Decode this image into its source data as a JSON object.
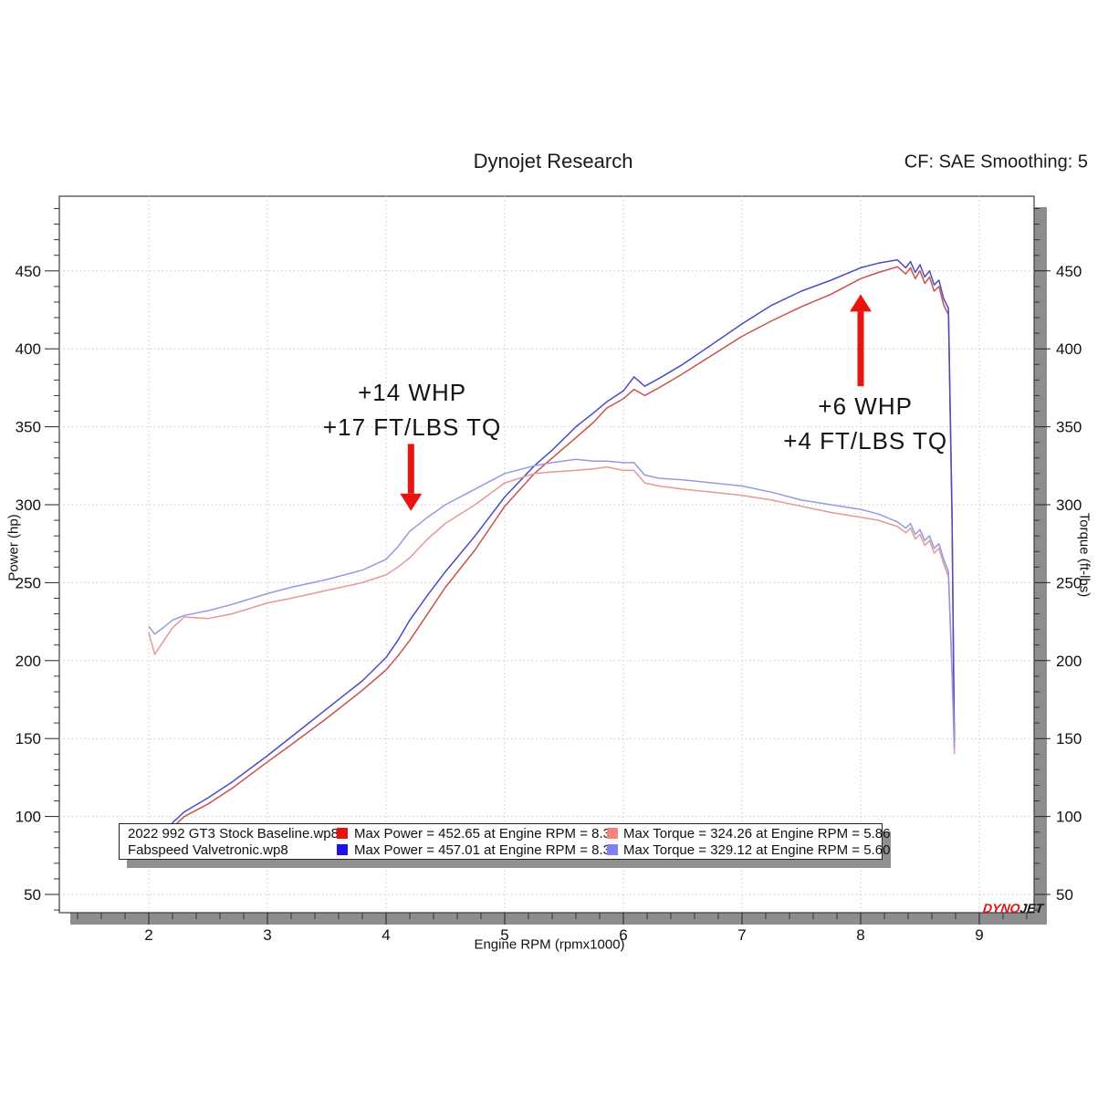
{
  "header": {
    "title": "Dynojet Research",
    "smoothing": "CF: SAE Smoothing: 5"
  },
  "chart_data": {
    "type": "line",
    "title": "Dynojet Research",
    "xlabel": "Engine RPM (rpmx1000)",
    "ylabel_left": "Power (hp)",
    "ylabel_right": "Torque (ft-lbs)",
    "x_ticks": [
      2,
      3,
      4,
      5,
      6,
      7,
      8,
      9
    ],
    "y_ticks": [
      50,
      100,
      150,
      200,
      250,
      300,
      350,
      400,
      450
    ],
    "xlim": [
      1.25,
      9.47
    ],
    "ylim": [
      39,
      498
    ],
    "grid": "dotted",
    "legend_position": "bottom",
    "x": [
      2.0,
      2.05,
      2.12,
      2.2,
      2.3,
      2.5,
      2.7,
      3.0,
      3.2,
      3.5,
      3.8,
      4.0,
      4.1,
      4.2,
      4.35,
      4.5,
      4.75,
      5.0,
      5.25,
      5.4,
      5.6,
      5.75,
      5.86,
      6.0,
      6.09,
      6.18,
      6.3,
      6.5,
      6.75,
      7.0,
      7.25,
      7.5,
      7.75,
      8.0,
      8.15,
      8.31,
      8.38,
      8.42,
      8.46,
      8.5,
      8.54,
      8.58,
      8.62,
      8.66,
      8.7,
      8.74,
      8.77,
      8.79
    ],
    "series": [
      {
        "name": "2022 992 GT3 Stock Baseline.wp8 - Power (hp)",
        "axis": "left",
        "color": "#c9514e",
        "values": [
          83,
          79,
          85,
          93,
          100,
          108,
          118,
          135,
          146,
          163,
          181,
          194,
          203,
          213,
          230,
          247,
          271,
          299,
          320,
          330,
          343,
          353,
          362,
          368,
          374,
          370,
          375,
          384,
          396,
          408,
          418,
          427,
          435,
          445,
          449,
          452.65,
          448,
          452,
          445,
          450,
          442,
          446,
          437,
          440,
          428,
          422,
          290,
          143
        ]
      },
      {
        "name": "Fabspeed Valvetronic.wp8 - Power (hp)",
        "axis": "left",
        "color": "#4a4cc4",
        "values": [
          85,
          84,
          88,
          96,
          103,
          112,
          122,
          139,
          151,
          169,
          187,
          202,
          213,
          226,
          242,
          257,
          280,
          305,
          325,
          335,
          350,
          359,
          366,
          373,
          382,
          376,
          381,
          390,
          403,
          416,
          428,
          437,
          444,
          452,
          455,
          457.01,
          452,
          456,
          449,
          454,
          446,
          450,
          441,
          444,
          432,
          426,
          295,
          148
        ]
      },
      {
        "name": "2022 992 GT3 Stock Baseline.wp8 - Torque (ft-lbs)",
        "axis": "right",
        "color": "#e49997",
        "values": [
          218,
          204,
          212,
          221,
          228,
          227,
          230,
          237,
          240,
          245,
          250,
          255,
          260,
          266,
          278,
          288,
          300,
          314,
          320,
          321,
          322,
          323,
          324.26,
          322,
          322,
          314,
          312,
          310,
          308,
          306,
          303,
          299,
          295,
          292,
          290,
          286,
          282,
          285,
          278,
          281,
          274,
          277,
          269,
          272,
          262,
          254,
          190,
          140
        ]
      },
      {
        "name": "Fabspeed Valvetronic.wp8 - Torque (ft-lbs)",
        "axis": "right",
        "color": "#9799e0",
        "values": [
          222,
          217,
          221,
          226,
          229,
          232,
          236,
          243,
          247,
          252,
          258,
          265,
          273,
          283,
          292,
          300,
          310,
          320,
          325,
          327,
          329.12,
          328,
          328,
          327,
          327,
          319,
          317,
          316,
          314,
          312,
          308,
          303,
          300,
          297,
          294,
          289,
          285,
          288,
          281,
          284,
          277,
          280,
          272,
          275,
          265,
          257,
          195,
          145
        ]
      }
    ],
    "annotation_color": "#e8140f",
    "annotations": [
      {
        "lines": [
          "+14 WHP",
          "+17 FT/LBS TQ"
        ],
        "text_rpm": 4.22,
        "text_top_value": 372,
        "arrow": {
          "rpm": 4.21,
          "from_value": 339,
          "to_value": 296
        }
      },
      {
        "lines": [
          "+6 WHP",
          "+4 FT/LBS TQ"
        ],
        "text_rpm": 8.04,
        "text_top_value": 363,
        "arrow": {
          "rpm": 8.0,
          "from_value": 376,
          "to_value": 435
        }
      }
    ]
  },
  "legend": {
    "rows": [
      {
        "name": "2022 992 GT3 Stock Baseline.wp8",
        "power_color": "#e81112",
        "power_text": "Max Power = 452.65 at Engine RPM = 8.31",
        "torque_color": "#f4827f",
        "torque_text": "Max Torque = 324.26 at Engine RPM = 5.86"
      },
      {
        "name": "Fabspeed Valvetronic.wp8",
        "power_color": "#1d12e8",
        "power_text": "Max Power = 457.01 at Engine RPM = 8.31",
        "torque_color": "#827ff4",
        "torque_text": "Max Torque = 329.12 at Engine RPM = 5.60"
      }
    ]
  },
  "logo": {
    "dyno": "DYNO",
    "jet": "JET"
  }
}
